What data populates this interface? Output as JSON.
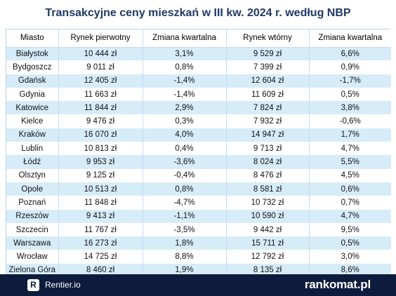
{
  "title": "Transakcyjne ceny mieszkań w III kw. 2024 r. według NBP",
  "columns": [
    "Miasto",
    "Rynek pierwotny",
    "Zmiana kwartalna",
    "Rynek wtórny",
    "Zmiana kwartalna"
  ],
  "rows": [
    [
      "Białystok",
      "10 444 zł",
      "3,1%",
      "9 529 zł",
      "6,6%"
    ],
    [
      "Bydgoszcz",
      "9 011 zł",
      "0,8%",
      "7 399 zł",
      "0,9%"
    ],
    [
      "Gdańsk",
      "12 405 zł",
      "-1,4%",
      "12 604 zł",
      "-1,7%"
    ],
    [
      "Gdynia",
      "11 663 zł",
      "-1,4%",
      "11 609 zł",
      "0,5%"
    ],
    [
      "Katowice",
      "11 844 zł",
      "2,9%",
      "7 824 zł",
      "3,8%"
    ],
    [
      "Kielce",
      "9 476 zł",
      "0,3%",
      "7 932 zł",
      "-0,6%"
    ],
    [
      "Kraków",
      "16 070 zł",
      "4,0%",
      "14 947 zł",
      "1,7%"
    ],
    [
      "Lublin",
      "10 813 zł",
      "0,4%",
      "9 713 zł",
      "4,7%"
    ],
    [
      "Łódź",
      "9 953 zł",
      "-3,6%",
      "8 024 zł",
      "5,5%"
    ],
    [
      "Olsztyn",
      "9 125 zł",
      "-0,4%",
      "8 476 zł",
      "4,5%"
    ],
    [
      "Opole",
      "10 513 zł",
      "0,8%",
      "8 581 zł",
      "0,6%"
    ],
    [
      "Poznań",
      "11 848 zł",
      "-4,7%",
      "10 732 zł",
      "0,7%"
    ],
    [
      "Rzeszów",
      "9 413 zł",
      "-1,1%",
      "10 590 zł",
      "4,7%"
    ],
    [
      "Szczecin",
      "11 767 zł",
      "-3,5%",
      "9 442 zł",
      "9,5%"
    ],
    [
      "Warszawa",
      "16 273 zł",
      "1,8%",
      "15 711 zł",
      "0,5%"
    ],
    [
      "Wrocław",
      "14 725 zł",
      "8,8%",
      "12 792 zł",
      "3,0%"
    ],
    [
      "Zielona Góra",
      "8 460 zł",
      "1,9%",
      "8 135 zł",
      "8,6%"
    ]
  ],
  "footer": {
    "rentier_badge": "R",
    "rentier_label": "Rentier.io",
    "rankomat_label": "rankomat.pl"
  }
}
